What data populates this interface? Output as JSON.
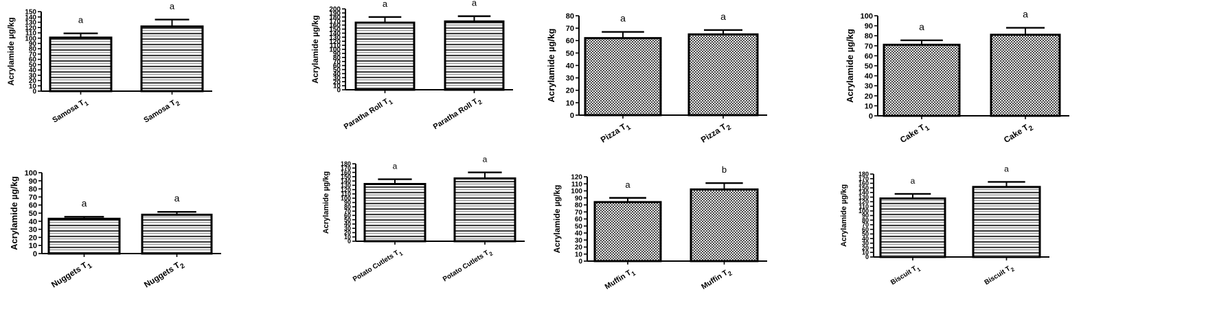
{
  "figure": {
    "panel_count": 8
  },
  "chart_data": [
    {
      "type": "bar",
      "ylabel": "Acrylamide µg/kg",
      "ylim": [
        0,
        150
      ],
      "ytick_step": 10,
      "categories": [
        {
          "name": "Samosa T",
          "sub": "1"
        },
        {
          "name": "Samosa T",
          "sub": "2"
        }
      ],
      "values": [
        101,
        122
      ],
      "errors": [
        8,
        13
      ],
      "significance": [
        "a",
        "a"
      ],
      "fill_pattern": "stripes"
    },
    {
      "type": "bar",
      "ylabel": "Acrylamide µg/kg",
      "ylim": [
        0,
        200
      ],
      "ytick_step": 10,
      "categories": [
        {
          "name": "Paratha Roll T",
          "sub": "1"
        },
        {
          "name": "Paratha Roll T",
          "sub": "2"
        }
      ],
      "values": [
        166,
        169
      ],
      "errors": [
        14,
        13
      ],
      "significance": [
        "a",
        "a"
      ],
      "fill_pattern": "stripes"
    },
    {
      "type": "bar",
      "ylabel": "Acrylamide µg/kg",
      "ylim": [
        0,
        80
      ],
      "ytick_step": 10,
      "categories": [
        {
          "name": "Pizza T",
          "sub": "1"
        },
        {
          "name": "Pizza T",
          "sub": "2"
        }
      ],
      "values": [
        62,
        65
      ],
      "errors": [
        5,
        3.5
      ],
      "significance": [
        "a",
        "a"
      ],
      "fill_pattern": "checks"
    },
    {
      "type": "bar",
      "ylabel": "Acrylamide µg/kg",
      "ylim": [
        0,
        100
      ],
      "ytick_step": 10,
      "categories": [
        {
          "name": "Cake T",
          "sub": "1"
        },
        {
          "name": "Cake T",
          "sub": "2"
        }
      ],
      "values": [
        71,
        81
      ],
      "errors": [
        4.5,
        7
      ],
      "significance": [
        "a",
        "a"
      ],
      "fill_pattern": "checks"
    },
    {
      "type": "bar",
      "ylabel": "Acrylamide µg/kg",
      "ylim": [
        0,
        100
      ],
      "ytick_step": 10,
      "categories": [
        {
          "name": "Nuggets T",
          "sub": "1"
        },
        {
          "name": "Nuggets T",
          "sub": "2"
        }
      ],
      "values": [
        43,
        48
      ],
      "errors": [
        2.5,
        3.5
      ],
      "significance": [
        "a",
        "a"
      ],
      "fill_pattern": "stripes"
    },
    {
      "type": "bar",
      "ylabel": "Acrylamide µg/kg",
      "ylim": [
        0,
        180
      ],
      "ytick_step": 10,
      "categories": [
        {
          "name": "Potato Cutlets T",
          "sub": "1"
        },
        {
          "name": "Potato Cutlets T",
          "sub": "2"
        }
      ],
      "values": [
        133,
        146
      ],
      "errors": [
        11,
        14
      ],
      "significance": [
        "a",
        "a"
      ],
      "fill_pattern": "stripes"
    },
    {
      "type": "bar",
      "ylabel": "Acrylamide µg/kg",
      "ylim": [
        0,
        120
      ],
      "ytick_step": 10,
      "categories": [
        {
          "name": "Muffin T",
          "sub": "1"
        },
        {
          "name": "Muffin T",
          "sub": "2"
        }
      ],
      "values": [
        84,
        102
      ],
      "errors": [
        6,
        9
      ],
      "significance": [
        "a",
        "b"
      ],
      "fill_pattern": "checks"
    },
    {
      "type": "bar",
      "ylabel": "Acrylamide µg/kg",
      "ylim": [
        0,
        180
      ],
      "ytick_step": 10,
      "categories": [
        {
          "name": "Biscuit T",
          "sub": "1"
        },
        {
          "name": "Biscuit T",
          "sub": "2"
        }
      ],
      "values": [
        127,
        152
      ],
      "errors": [
        10,
        11
      ],
      "significance": [
        "a",
        "a"
      ],
      "fill_pattern": "stripes"
    }
  ]
}
